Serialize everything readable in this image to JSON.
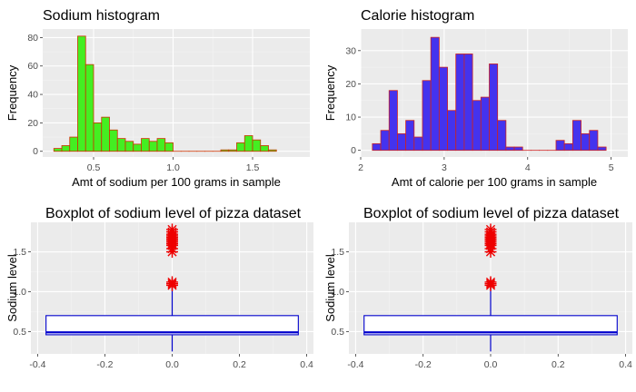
{
  "chart_data": [
    {
      "type": "bar",
      "title": "Sodium histogram",
      "xlabel": "Amt of sodium per 100 grams in  sample",
      "ylabel": "Frequency",
      "xlim": [
        0.18,
        1.86
      ],
      "ylim": [
        -4,
        86
      ],
      "xticks": [
        0.5,
        1.0,
        1.5
      ],
      "xtick_labels": [
        "0.5",
        "1.0",
        "1.5"
      ],
      "yticks": [
        0,
        20,
        40,
        60,
        80
      ],
      "bin_start": 0.25,
      "bin_width": 0.05,
      "values": [
        2,
        4,
        10,
        81,
        61,
        20,
        24,
        15,
        9,
        7,
        5,
        9,
        7,
        9,
        6,
        0,
        0,
        0,
        0,
        0,
        0,
        1,
        1,
        6,
        11,
        8,
        4,
        1
      ],
      "fill": "#44ee22",
      "stroke": "#cc3300",
      "grid": true
    },
    {
      "type": "bar",
      "title": "Calorie histogram",
      "xlabel": "Amt of calorie per 100 grams in  sample",
      "ylabel": "Frequency",
      "xlim": [
        2.0,
        5.2
      ],
      "ylim": [
        -2,
        36.5
      ],
      "xticks": [
        2,
        3,
        4,
        5
      ],
      "xtick_labels": [
        "2",
        "3",
        "4",
        "5"
      ],
      "yticks": [
        0,
        10,
        20,
        30
      ],
      "bin_start": 2.14,
      "bin_width": 0.1,
      "values": [
        2,
        6,
        18,
        5,
        9,
        4,
        21,
        34,
        25,
        12,
        29,
        29,
        15,
        16,
        26,
        9,
        1,
        1,
        0,
        0,
        0,
        0,
        3,
        2,
        9,
        5,
        6,
        1
      ],
      "fill": "#4433ee",
      "stroke": "#cc2222",
      "grid": true
    },
    {
      "type": "box",
      "title": "Boxplot of sodium level of pizza dataset",
      "xlabel": "",
      "ylabel": "Sodium level",
      "xlim": [
        -0.42,
        0.42
      ],
      "ylim": [
        0.22,
        1.87
      ],
      "xticks": [
        -0.4,
        -0.2,
        0.0,
        0.2,
        0.4
      ],
      "xtick_labels": [
        "-0.4",
        "-0.2",
        "0.0",
        "0.2",
        "0.4"
      ],
      "yticks": [
        0.5,
        1.0,
        1.5
      ],
      "ytick_labels": [
        "0.5",
        "1.0",
        "1.5"
      ],
      "box": {
        "x_min": -0.375,
        "x_max": 0.375,
        "q1": 0.46,
        "median": 0.49,
        "q3": 0.7,
        "whisker_low": 0.25,
        "whisker_high": 1.1
      },
      "outliers": [
        1.08,
        1.1,
        1.12,
        1.5,
        1.54,
        1.58,
        1.6,
        1.62,
        1.64,
        1.66,
        1.68,
        1.7,
        1.72,
        1.75,
        1.78
      ],
      "box_color": "#0000cc",
      "outlier_color": "#ee0000",
      "grid": true
    },
    {
      "type": "box",
      "title": "Boxplot of sodium level of pizza dataset",
      "xlabel": "",
      "ylabel": "Sodium level",
      "xlim": [
        -0.42,
        0.42
      ],
      "ylim": [
        0.22,
        1.87
      ],
      "xticks": [
        -0.4,
        -0.2,
        0.0,
        0.2,
        0.4
      ],
      "xtick_labels": [
        "-0.4",
        "-0.2",
        "0.0",
        "0.2",
        "0.4"
      ],
      "yticks": [
        0.5,
        1.0,
        1.5
      ],
      "ytick_labels": [
        "0.5",
        "1.0",
        "1.5"
      ],
      "box": {
        "x_min": -0.375,
        "x_max": 0.375,
        "q1": 0.46,
        "median": 0.49,
        "q3": 0.7,
        "whisker_low": 0.25,
        "whisker_high": 1.1
      },
      "outliers": [
        1.08,
        1.1,
        1.12,
        1.5,
        1.54,
        1.58,
        1.6,
        1.62,
        1.64,
        1.66,
        1.68,
        1.7,
        1.72,
        1.75,
        1.78
      ],
      "box_color": "#0000cc",
      "outlier_color": "#ee0000",
      "grid": true
    }
  ]
}
